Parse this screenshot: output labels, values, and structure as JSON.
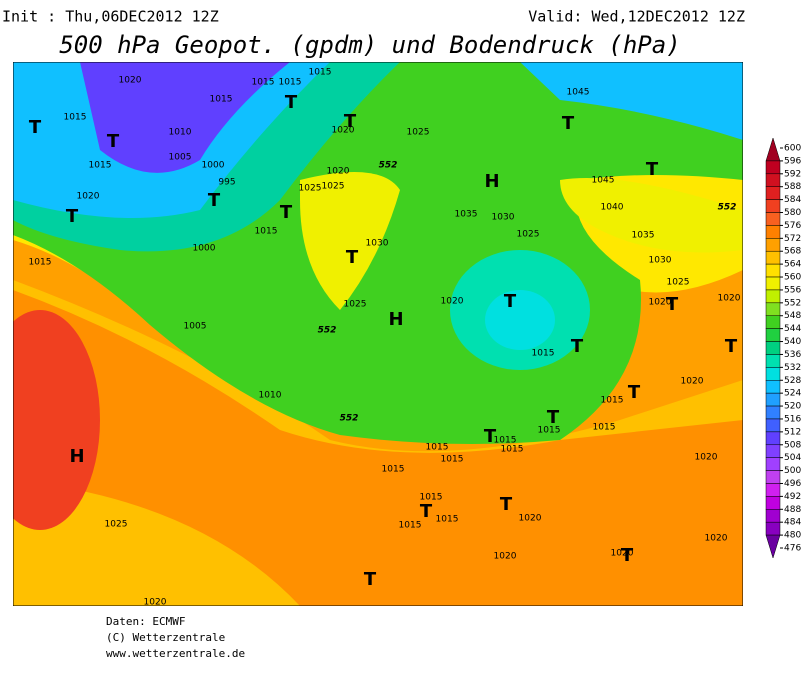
{
  "header": {
    "init": "Init : Thu,06DEC2012 12Z",
    "valid": "Valid: Wed,12DEC2012 12Z",
    "title": "500 hPa Geopot. (gpdm) und Bodendruck (hPa)"
  },
  "map": {
    "isobar_labels": [
      "1020",
      "1015",
      "1015",
      "1015",
      "1015",
      "1015",
      "1010",
      "1005",
      "1000",
      "995",
      "1020",
      "1015",
      "1020",
      "1025",
      "1020",
      "1025",
      "1025",
      "1015",
      "1000",
      "1015",
      "1005",
      "1010",
      "1030",
      "1025",
      "1035",
      "1030",
      "1025",
      "1020",
      "1015",
      "1045",
      "1045",
      "1040",
      "1035",
      "1030",
      "1025",
      "1020",
      "1020",
      "1020",
      "1015",
      "1015",
      "1015",
      "1015",
      "1015",
      "1015",
      "1015",
      "1015",
      "1020",
      "1015",
      "1015",
      "1015",
      "1020",
      "1020",
      "1020",
      "1020",
      "1025",
      "1020"
    ],
    "contour_labels": [
      "552",
      "552",
      "552",
      "552"
    ],
    "pressure_centres": [
      "T",
      "T",
      "T",
      "T",
      "T",
      "T",
      "T",
      "T",
      "H",
      "H",
      "T",
      "T",
      "T",
      "T",
      "T",
      "T",
      "T",
      "T",
      "T",
      "H",
      "T",
      "T",
      "T",
      "T"
    ]
  },
  "colorbar": {
    "levels": [
      600,
      596,
      592,
      588,
      584,
      580,
      576,
      572,
      568,
      564,
      560,
      556,
      552,
      548,
      544,
      540,
      536,
      532,
      528,
      524,
      520,
      516,
      512,
      508,
      504,
      500,
      496,
      492,
      488,
      484,
      480,
      476
    ],
    "colors": [
      "#a00020",
      "#c00020",
      "#d01020",
      "#e02020",
      "#f04020",
      "#f86020",
      "#ff8000",
      "#ffa000",
      "#ffc000",
      "#ffe000",
      "#f0f000",
      "#c0f000",
      "#80e020",
      "#40d020",
      "#20d040",
      "#00d080",
      "#00e0b0",
      "#00e0e0",
      "#10c0ff",
      "#20a0ff",
      "#3080ff",
      "#4060ff",
      "#6040ff",
      "#8040ff",
      "#a040ff",
      "#c040f0",
      "#d020f0",
      "#c000e0",
      "#a000d0",
      "#8800c0",
      "#6a00a0"
    ]
  },
  "footer": {
    "data": "Daten: ECMWF",
    "copyright": "(C) Wetterzentrale",
    "url": "www.wetterzentrale.de"
  }
}
